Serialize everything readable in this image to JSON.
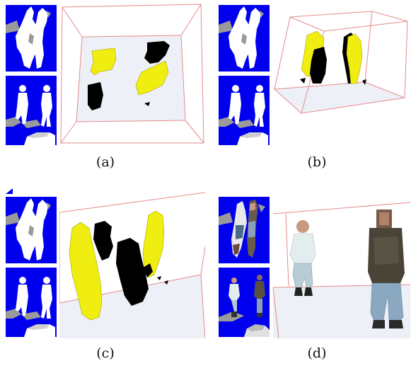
{
  "panels": [
    {
      "id": "a",
      "caption": "(a)"
    },
    {
      "id": "b",
      "caption": "(b)"
    },
    {
      "id": "c",
      "caption": "(c)"
    },
    {
      "id": "d",
      "caption": "(d)"
    }
  ],
  "colors": {
    "thumbnail_background": "#0000ee",
    "silhouette": "#ffffff",
    "shadow": "#9a9a9a",
    "floor": "#eef0f7",
    "room_edges": "#e58a8a",
    "voxel_yellow": "#f0ee10",
    "voxel_black": "#000000"
  }
}
